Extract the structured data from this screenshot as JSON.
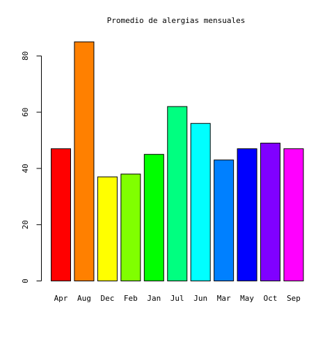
{
  "chart_data": {
    "type": "bar",
    "title": "Promedio de alergias mensuales",
    "categories": [
      "Apr",
      "Aug",
      "Dec",
      "Feb",
      "Jan",
      "Jul",
      "Jun",
      "Mar",
      "May",
      "Oct",
      "Sep"
    ],
    "values": [
      47,
      85,
      37,
      38,
      45,
      62,
      56,
      43,
      47,
      49,
      47
    ],
    "colors": [
      "#FF0000",
      "#FF8000",
      "#FFFF00",
      "#80FF00",
      "#00FF00",
      "#00FF80",
      "#00FFFF",
      "#0080FF",
      "#0000FF",
      "#8000FF",
      "#FF00FF"
    ],
    "xlabel": "",
    "ylabel": "",
    "ylim": [
      0,
      85
    ],
    "yticks": [
      0,
      20,
      40,
      60,
      80
    ],
    "grid": false
  }
}
